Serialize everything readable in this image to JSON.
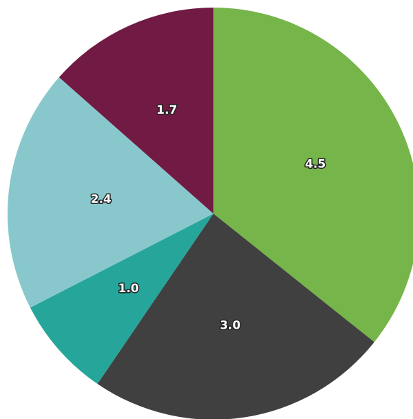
{
  "chart_data": {
    "type": "pie",
    "values": [
      4.5,
      3.0,
      1.0,
      2.4,
      1.7
    ],
    "value_labels": [
      "4.5",
      "3.0",
      "1.0",
      "2.4",
      "1.7"
    ],
    "colors": [
      "#76b54a",
      "#404040",
      "#26a69a",
      "#88c8cc",
      "#701a44"
    ]
  }
}
